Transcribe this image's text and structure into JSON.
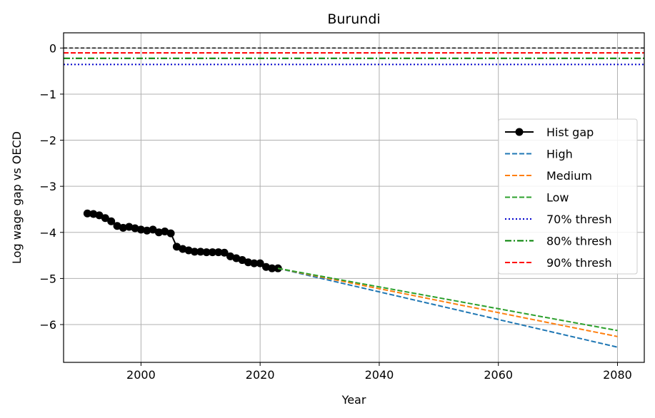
{
  "chart_data": {
    "type": "line",
    "title": "Burundi",
    "xlabel": "Year",
    "ylabel": "Log wage gap vs OECD",
    "xlim": [
      1987,
      2084.5
    ],
    "ylim": [
      -6.82,
      0.33
    ],
    "xticks": [
      2000,
      2020,
      2040,
      2060,
      2080
    ],
    "yticks": [
      0,
      -1,
      -2,
      -3,
      -4,
      -5,
      -6
    ],
    "xtick_labels": [
      "2000",
      "2020",
      "2040",
      "2060",
      "2080"
    ],
    "ytick_labels": [
      "0",
      "−1",
      "−2",
      "−3",
      "−4",
      "−5",
      "−6"
    ],
    "grid": true,
    "legend_position": "center-right",
    "zero_line": {
      "y": 0,
      "color": "#000000",
      "style": "dashed"
    },
    "series": [
      {
        "name": "Hist gap",
        "color": "#000000",
        "style": "solid-marker",
        "x": [
          1991,
          1992,
          1993,
          1994,
          1995,
          1996,
          1997,
          1998,
          1999,
          2000,
          2001,
          2002,
          2003,
          2004,
          2005,
          2006,
          2007,
          2008,
          2009,
          2010,
          2011,
          2012,
          2013,
          2014,
          2015,
          2016,
          2017,
          2018,
          2019,
          2020,
          2021,
          2022,
          2023
        ],
        "y": [
          -3.59,
          -3.6,
          -3.63,
          -3.69,
          -3.76,
          -3.86,
          -3.9,
          -3.88,
          -3.91,
          -3.94,
          -3.96,
          -3.94,
          -4.0,
          -3.98,
          -4.02,
          -4.31,
          -4.36,
          -4.39,
          -4.42,
          -4.42,
          -4.43,
          -4.43,
          -4.43,
          -4.44,
          -4.52,
          -4.56,
          -4.6,
          -4.65,
          -4.67,
          -4.67,
          -4.75,
          -4.78,
          -4.78
        ]
      },
      {
        "name": "High",
        "color": "#1f77b4",
        "style": "dashed",
        "x": [
          2023,
          2080
        ],
        "y": [
          -4.78,
          -6.49
        ]
      },
      {
        "name": "Medium",
        "color": "#ff7f0e",
        "style": "dashed",
        "x": [
          2023,
          2080
        ],
        "y": [
          -4.78,
          -6.26
        ]
      },
      {
        "name": "Low",
        "color": "#2ca02c",
        "style": "dashed",
        "x": [
          2023,
          2080
        ],
        "y": [
          -4.78,
          -6.13
        ]
      },
      {
        "name": "70% thresh",
        "color": "#0000cc",
        "style": "dotted",
        "hline": -0.357
      },
      {
        "name": "80% thresh",
        "color": "#008000",
        "style": "dashdot",
        "hline": -0.223
      },
      {
        "name": "90% thresh",
        "color": "#ff0000",
        "style": "dashed",
        "hline": -0.105
      }
    ]
  }
}
